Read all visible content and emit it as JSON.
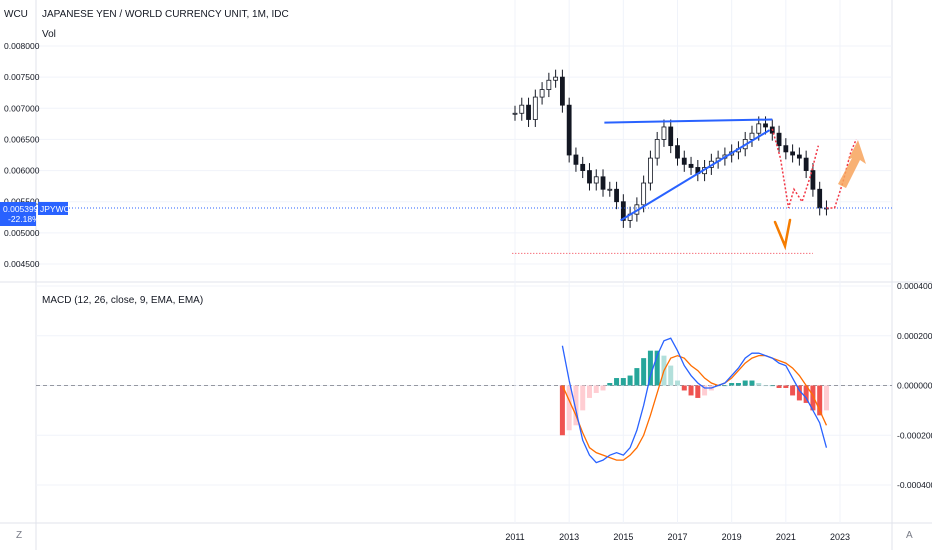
{
  "header": {
    "currency_code": "WCU",
    "title": "JAPANESE YEN / WORLD CURRENCY UNIT, 1M, IDC",
    "vol_label": "Vol"
  },
  "price_panel": {
    "y_ticks": [
      "0.008000",
      "0.007500",
      "0.007000",
      "0.006500",
      "0.006000",
      "0.005500",
      "0.005000",
      "0.004500"
    ],
    "current_price": "0.005399",
    "current_change": "-22.18%",
    "symbol_label": "JPYWCU"
  },
  "macd_panel": {
    "label": "MACD (12, 26, close, 9, EMA, EMA)",
    "y_ticks": [
      "0.000400",
      "0.000200",
      "0.000000",
      "-0.000200",
      "-0.000400"
    ]
  },
  "time_axis": {
    "ticks": [
      "2011",
      "2013",
      "2015",
      "2017",
      "2019",
      "2021",
      "2023"
    ],
    "left_button": "Z",
    "right_button": "A"
  },
  "colors": {
    "up_candle": "#131722",
    "down_candle": "#131722",
    "trendline": "#2962ff",
    "price_line": "#2962ff",
    "projection": "#f23645",
    "arrow": "#f7a35c",
    "v_mark": "#f57c00",
    "macd_line": "#2962ff",
    "signal_line": "#ff6d00",
    "hist_up": "#26a69a",
    "hist_down": "#ef5350"
  },
  "chart_data": [
    {
      "type": "candlestick",
      "title": "JAPANESE YEN / WORLD CURRENCY UNIT, 1M, IDC",
      "x_range": [
        2010.0,
        2024.5
      ],
      "y_range": [
        0.0042,
        0.0082
      ],
      "series": [
        {
          "kind": "close",
          "x": [
            2011.0,
            2011.25,
            2011.5,
            2011.75,
            2012.0,
            2012.25,
            2012.5,
            2012.75,
            2013.0,
            2013.25,
            2013.5,
            2013.75,
            2014.0,
            2014.25,
            2014.5,
            2014.75,
            2015.0,
            2015.25,
            2015.5,
            2015.75,
            2016.0,
            2016.25,
            2016.5,
            2016.75,
            2017.0,
            2017.25,
            2017.5,
            2017.75,
            2018.0,
            2018.25,
            2018.5,
            2018.75,
            2019.0,
            2019.25,
            2019.5,
            2019.75,
            2020.0,
            2020.25,
            2020.5,
            2020.75,
            2021.0,
            2021.25,
            2021.5,
            2021.75,
            2022.0,
            2022.25,
            2022.5
          ],
          "y": [
            0.00692,
            0.00705,
            0.00682,
            0.00718,
            0.0073,
            0.00745,
            0.0075,
            0.00705,
            0.00625,
            0.0061,
            0.006,
            0.0058,
            0.0059,
            0.0057,
            0.0057,
            0.0055,
            0.0052,
            0.0053,
            0.00545,
            0.0058,
            0.0062,
            0.0065,
            0.0067,
            0.0064,
            0.0062,
            0.0061,
            0.00605,
            0.00595,
            0.00605,
            0.00615,
            0.0062,
            0.00625,
            0.0063,
            0.00635,
            0.0065,
            0.0066,
            0.00675,
            0.0067,
            0.0066,
            0.0064,
            0.0063,
            0.00625,
            0.0062,
            0.006,
            0.0057,
            0.0054,
            0.0054
          ]
        }
      ],
      "annotations": {
        "upper_trendline": {
          "x": [
            2014.3,
            2020.5
          ],
          "y": [
            0.00677,
            0.00682
          ]
        },
        "lower_trendline": {
          "x": [
            2014.9,
            2020.4
          ],
          "y": [
            0.0052,
            0.00665
          ]
        },
        "support_line": {
          "x": [
            2010.9,
            2022.0
          ],
          "y": [
            0.00467,
            0.00467
          ]
        },
        "current_price_line": {
          "y": 0.005399
        },
        "projection": {
          "x": [
            2020.5,
            2020.8,
            2021.1,
            2021.3,
            2021.6,
            2021.9,
            2022.2
          ],
          "y": [
            0.00667,
            0.0062,
            0.0054,
            0.0057,
            0.0055,
            0.0059,
            0.0064
          ]
        },
        "projection2": {
          "x": [
            2022.5,
            2022.8,
            2023.1,
            2023.4,
            2023.6
          ],
          "y": [
            0.0054,
            0.0054,
            0.0058,
            0.0063,
            0.0065
          ]
        }
      }
    },
    {
      "type": "macd",
      "title": "MACD (12, 26, close, 9, EMA, EMA)",
      "y_range": [
        -0.00045,
        0.00043
      ],
      "x": [
        2012.75,
        2013.0,
        2013.25,
        2013.5,
        2013.75,
        2014.0,
        2014.25,
        2014.5,
        2014.75,
        2015.0,
        2015.25,
        2015.5,
        2015.75,
        2016.0,
        2016.25,
        2016.5,
        2016.75,
        2017.0,
        2017.25,
        2017.5,
        2017.75,
        2018.0,
        2018.25,
        2018.5,
        2018.75,
        2019.0,
        2019.25,
        2019.5,
        2019.75,
        2020.0,
        2020.25,
        2020.5,
        2020.75,
        2021.0,
        2021.25,
        2021.5,
        2021.75,
        2022.0,
        2022.25,
        2022.5
      ],
      "macd": [
        0.00016,
        2e-05,
        -0.0001,
        -0.00022,
        -0.00028,
        -0.00031,
        -0.0003,
        -0.00028,
        -0.00027,
        -0.00028,
        -0.00025,
        -0.00018,
        -8e-05,
        4e-05,
        0.00012,
        0.00018,
        0.00019,
        0.00014,
        8e-05,
        4e-05,
        1e-05,
        -1e-05,
        -1e-05,
        0.0,
        1e-05,
        4e-05,
        7e-05,
        0.00011,
        0.00013,
        0.00013,
        0.00012,
        0.00011,
        9e-05,
        8e-05,
        3e-05,
        -2e-05,
        -5e-05,
        -0.0001,
        -0.00015,
        -0.00025
      ],
      "signal": [
        0.0,
        -6e-05,
        -0.00012,
        -0.00019,
        -0.00025,
        -0.00027,
        -0.00028,
        -0.00029,
        -0.0003,
        -0.0003,
        -0.00028,
        -0.00025,
        -0.0002,
        -0.00012,
        -3e-05,
        6e-05,
        0.00011,
        0.00012,
        0.00011,
        8e-05,
        6e-05,
        3e-05,
        1e-05,
        0.0,
        1e-05,
        3e-05,
        6e-05,
        9e-05,
        0.00011,
        0.00012,
        0.00012,
        0.00011,
        0.0001,
        9e-05,
        7e-05,
        4e-05,
        0.0,
        -4e-05,
        -0.0001,
        -0.00016
      ],
      "histogram": [
        -0.0002,
        -0.00018,
        -0.00016,
        -0.0001,
        -5e-05,
        -3e-05,
        -2e-05,
        1e-05,
        3e-05,
        3e-05,
        4e-05,
        7e-05,
        0.00011,
        0.00014,
        0.00014,
        0.00012,
        8e-05,
        2e-05,
        -2e-05,
        -4e-05,
        -5e-05,
        -4e-05,
        -2e-05,
        0.0,
        0.0,
        1e-05,
        1e-05,
        2e-05,
        2e-05,
        1e-05,
        0.0,
        0.0,
        -1e-05,
        -1e-05,
        -4e-05,
        -6e-05,
        -7e-05,
        -0.0001,
        -0.00012,
        -0.0001
      ]
    }
  ]
}
